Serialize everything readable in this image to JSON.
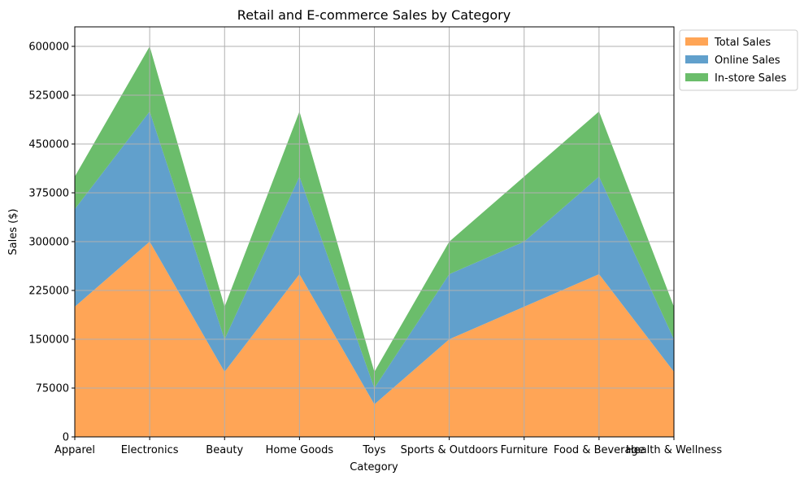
{
  "chart_data": {
    "type": "area",
    "stacked": true,
    "title": "Retail and E-commerce Sales by Category",
    "xlabel": "Category",
    "ylabel": "Sales ($)",
    "categories": [
      "Apparel",
      "Electronics",
      "Beauty",
      "Home Goods",
      "Toys",
      "Sports & Outdoors",
      "Furniture",
      "Food & Beverage",
      "Health & Wellness"
    ],
    "series": [
      {
        "name": "Total Sales",
        "color": "#ffa556",
        "values": [
          200000,
          300000,
          100000,
          250000,
          50000,
          150000,
          200000,
          250000,
          100000
        ]
      },
      {
        "name": "Online Sales",
        "color": "#61a0cc",
        "values": [
          150000,
          200000,
          50000,
          150000,
          25000,
          100000,
          100000,
          150000,
          50000
        ]
      },
      {
        "name": "In-store Sales",
        "color": "#6bbd6b",
        "values": [
          50000,
          100000,
          50000,
          100000,
          25000,
          50000,
          100000,
          100000,
          50000
        ]
      }
    ],
    "ylim": [
      0,
      630000
    ],
    "yticks": [
      0,
      75000,
      150000,
      225000,
      300000,
      375000,
      450000,
      525000,
      600000
    ],
    "grid": true,
    "legend_position": "upper-right-outside"
  }
}
